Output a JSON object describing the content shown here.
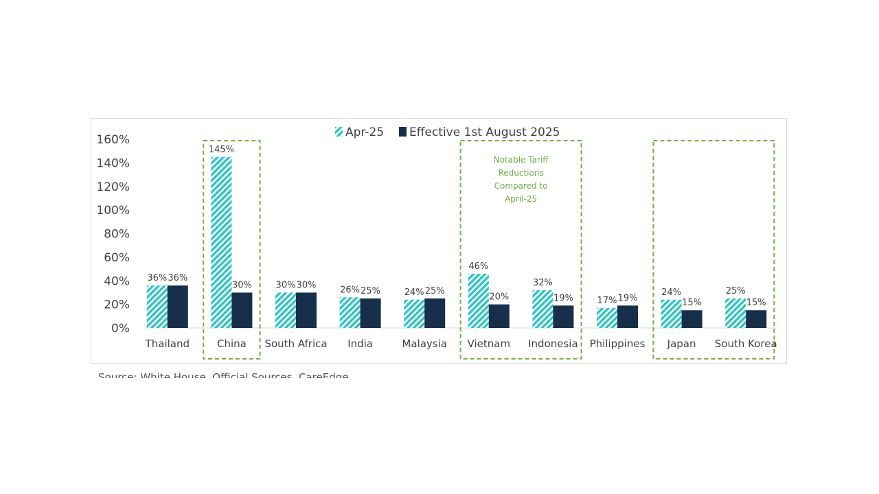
{
  "colors": {
    "apr": "#2ec4c4",
    "aug": "#16304c",
    "box": "#70ad47",
    "gridline": "#d9d9d9",
    "text": "#404040"
  },
  "source": "Source: White House, Official Sources, CareEdge",
  "chart_data": {
    "type": "bar",
    "title": "",
    "xlabel": "",
    "ylabel": "",
    "ylim": [
      0,
      160
    ],
    "yticks": [
      "0%",
      "20%",
      "40%",
      "60%",
      "80%",
      "100%",
      "120%",
      "140%",
      "160%"
    ],
    "grid": false,
    "legend_position": "top",
    "categories": [
      "Thailand",
      "China",
      "South Africa",
      "India",
      "Malaysia",
      "Vietnam",
      "Indonesia",
      "Philippines",
      "Japan",
      "South Korea"
    ],
    "series": [
      {
        "name": "Apr-25",
        "pattern": "hatched",
        "values": [
          36,
          145,
          30,
          26,
          24,
          46,
          32,
          17,
          24,
          25
        ],
        "labels": [
          "36%",
          "145%",
          "30%",
          "26%",
          "24%",
          "46%",
          "32%",
          "17%",
          "24%",
          "25%"
        ]
      },
      {
        "name": "Effective 1st August 2025",
        "pattern": "solid",
        "values": [
          36,
          30,
          30,
          25,
          25,
          20,
          19,
          19,
          15,
          15
        ],
        "labels": [
          "36%",
          "30%",
          "30%",
          "25%",
          "25%",
          "20%",
          "19%",
          "19%",
          "15%",
          "15%"
        ]
      }
    ],
    "annotation": {
      "lines": [
        "Notable Tariff",
        "Reductions",
        "Compared to",
        "April-25"
      ]
    },
    "highlight_groups": [
      [
        "China"
      ],
      [
        "Vietnam",
        "Indonesia"
      ],
      [
        "Japan",
        "South Korea"
      ]
    ]
  }
}
